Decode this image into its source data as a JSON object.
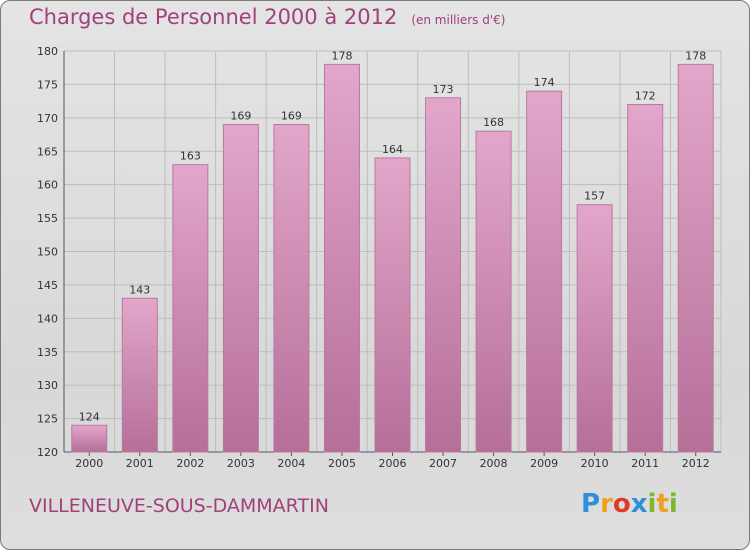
{
  "title": "Charges de Personnel 2000 à 2012",
  "subtitle": "(en milliers d'€)",
  "place": "VILLENEUVE-SOUS-DAMMARTIN",
  "logo": {
    "text": "Proxiti",
    "letters": [
      {
        "char": "P",
        "color": "#2f8fd8"
      },
      {
        "char": "r",
        "color": "#f0a020"
      },
      {
        "char": "o",
        "color": "#e03a2a"
      },
      {
        "char": "x",
        "color": "#2f8fd8"
      },
      {
        "char": "i",
        "color": "#7cb82f"
      },
      {
        "char": "t",
        "color": "#f0a020"
      },
      {
        "char": "i",
        "color": "#7cb82f"
      }
    ]
  },
  "colors": {
    "text": "#a0417a",
    "bar_light": "#e3a6cb",
    "bar_dark": "#b56f98",
    "grid": "#bdbdbd"
  },
  "chart_data": {
    "type": "bar",
    "title": "Charges de Personnel 2000 à 2012",
    "subtitle": "(en milliers d'€)",
    "categories": [
      "2000",
      "2001",
      "2002",
      "2003",
      "2004",
      "2005",
      "2006",
      "2007",
      "2008",
      "2009",
      "2010",
      "2011",
      "2012"
    ],
    "values": [
      124,
      143,
      163,
      169,
      169,
      178,
      164,
      173,
      168,
      174,
      157,
      172,
      178
    ],
    "ylim": [
      120,
      180
    ],
    "yticks": [
      120,
      125,
      130,
      135,
      140,
      145,
      150,
      155,
      160,
      165,
      170,
      175,
      180
    ],
    "grid": true
  }
}
